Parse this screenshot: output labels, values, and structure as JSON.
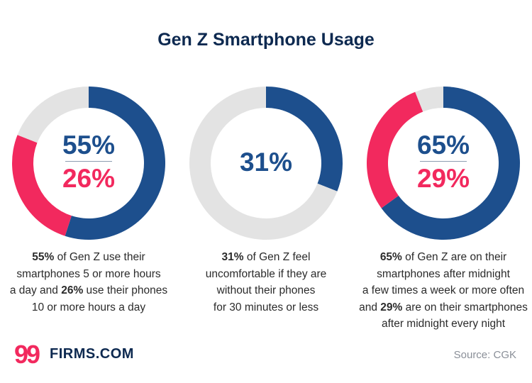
{
  "title": "Gen Z Smartphone Usage",
  "colors": {
    "navy": "#1d4f8d",
    "pink": "#f2295e",
    "gray": "#e3e3e3",
    "title": "#0d2950"
  },
  "chart_data": [
    {
      "type": "pie",
      "values": [
        55,
        26,
        19
      ],
      "center_labels": {
        "primary": "55%",
        "secondary": "26%"
      },
      "caption": [
        [
          {
            "t": "55%",
            "b": true
          },
          {
            "t": " of Gen Z use their"
          }
        ],
        [
          {
            "t": "smartphones 5 or more hours"
          }
        ],
        [
          {
            "t": "a day and "
          },
          {
            "t": "26%",
            "b": true
          },
          {
            "t": " use their phones"
          }
        ],
        [
          {
            "t": "10 or more hours a day"
          }
        ]
      ]
    },
    {
      "type": "pie",
      "values": [
        31,
        69
      ],
      "center_labels": {
        "primary": "31%",
        "secondary": ""
      },
      "caption": [
        [
          {
            "t": "31%",
            "b": true
          },
          {
            "t": " of Gen Z feel"
          }
        ],
        [
          {
            "t": "uncomfortable if they are"
          }
        ],
        [
          {
            "t": "without their phones"
          }
        ],
        [
          {
            "t": "for 30 minutes or less"
          }
        ]
      ]
    },
    {
      "type": "pie",
      "values": [
        65,
        29,
        6
      ],
      "center_labels": {
        "primary": "65%",
        "secondary": "29%"
      },
      "caption": [
        [
          {
            "t": "65%",
            "b": true
          },
          {
            "t": " of Gen Z are on their"
          }
        ],
        [
          {
            "t": "smartphones after midnight"
          }
        ],
        [
          {
            "t": "a few times a week or more often"
          }
        ],
        [
          {
            "t": "and "
          },
          {
            "t": "29%",
            "b": true
          },
          {
            "t": " are on their smartphones"
          }
        ],
        [
          {
            "t": "after midnight every night"
          }
        ]
      ]
    }
  ],
  "brand": {
    "mark": "99",
    "name": "FIRMS.COM"
  },
  "source": "Source: CGK"
}
